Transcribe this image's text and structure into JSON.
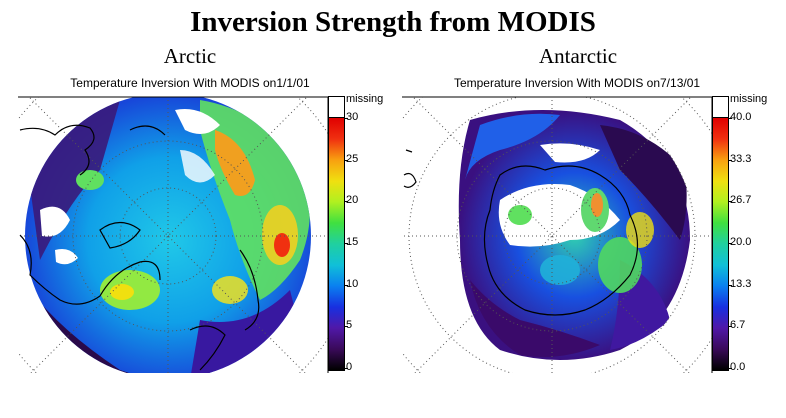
{
  "title": "Inversion Strength from MODIS",
  "panels": [
    {
      "heading": "Arctic",
      "subtitle": "Temperature Inversion With MODIS on1/1/01",
      "colorbar": {
        "missing_label": "missing",
        "ticks": [
          "30",
          "25",
          "20",
          "15",
          "10",
          "5",
          "0"
        ],
        "range": [
          0,
          30
        ]
      }
    },
    {
      "heading": "Antarctic",
      "subtitle": "Temperature Inversion With MODIS on7/13/01",
      "colorbar": {
        "missing_label": "missing",
        "ticks": [
          "40.0",
          "33.3",
          "26.7",
          "20.0",
          "13.3",
          "6.7",
          "0.0"
        ],
        "range": [
          0,
          40
        ]
      }
    }
  ],
  "colors": {
    "scale": [
      "#000000",
      "#3a0a5a",
      "#5018a8",
      "#1830e0",
      "#0a80f0",
      "#10c0d8",
      "#20d0a0",
      "#40e040",
      "#b0f020",
      "#f0e010",
      "#f8a010",
      "#f03010",
      "#e00000"
    ],
    "missing": "#ffffff",
    "coast": "#000000",
    "grid": "#666666"
  }
}
